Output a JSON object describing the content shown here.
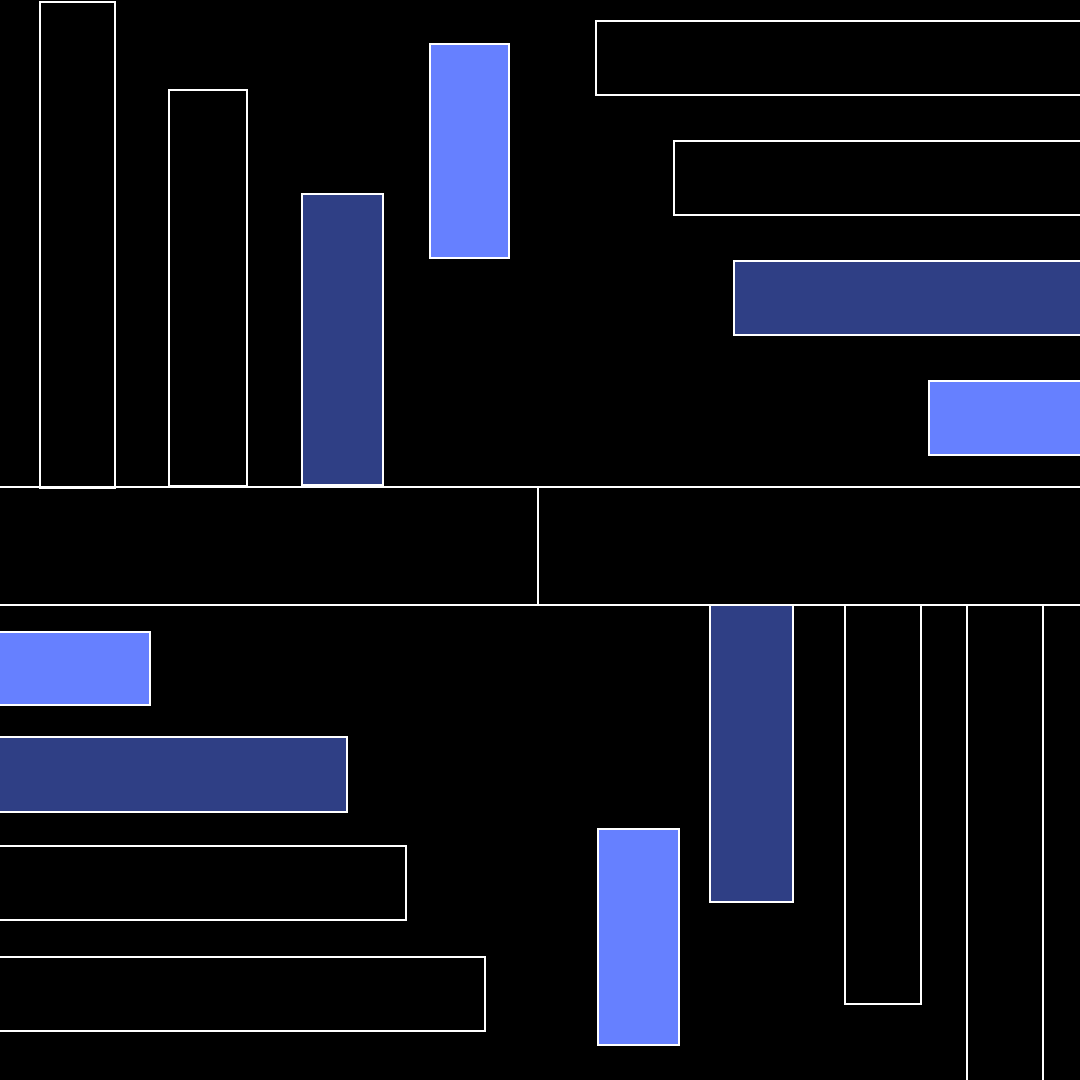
{
  "colors": {
    "background": "#000000",
    "outline": "#ffffff",
    "dark_fill": "#2f3f85",
    "light_fill": "#6680ff"
  },
  "groups": {
    "top_left": [
      "outline",
      "outline",
      "dark",
      "light"
    ],
    "top_right": [
      "outline",
      "outline",
      "dark",
      "light"
    ],
    "bottom_left": [
      "light",
      "dark",
      "outline",
      "outline"
    ],
    "bottom_right": [
      "light",
      "dark",
      "outline",
      "outline"
    ]
  }
}
